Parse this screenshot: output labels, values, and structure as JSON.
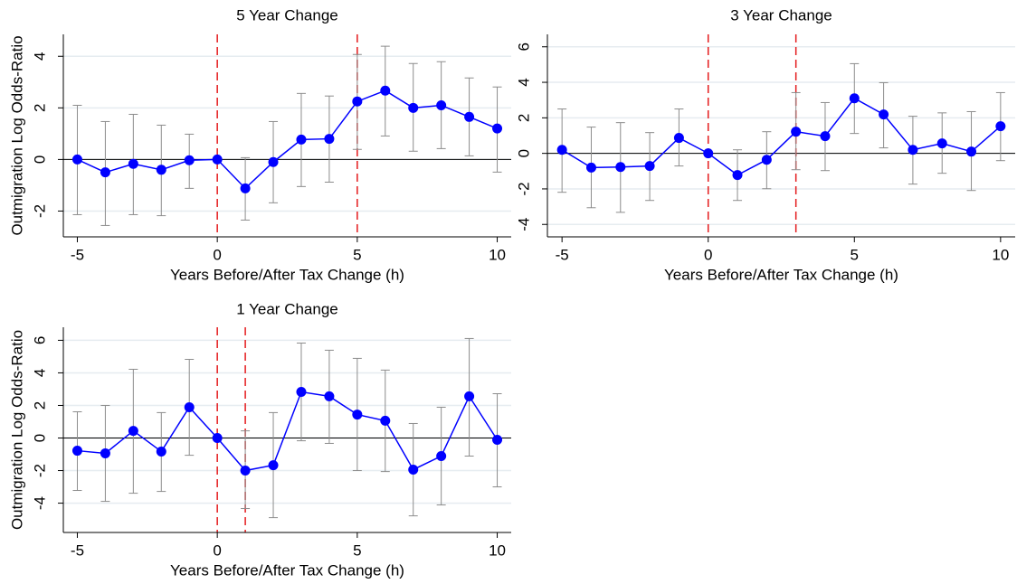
{
  "chart_data": [
    {
      "type": "line",
      "title": "5 Year Change",
      "x_label": "Years Before/After Tax Change (h)",
      "y_label": "Outmigration Log Odds-Ratio",
      "x": [
        -5,
        -4,
        -3,
        -2,
        -1,
        0,
        1,
        2,
        3,
        4,
        5,
        6,
        7,
        8,
        9,
        10
      ],
      "series": [
        {
          "color": "#0000ff",
          "error_color": "#8c8c8c",
          "values": [
            0.0,
            -0.5,
            -0.17,
            -0.4,
            -0.03,
            0,
            -1.12,
            -0.1,
            0.77,
            0.8,
            2.25,
            2.67,
            2.0,
            2.1,
            1.65,
            1.2
          ],
          "ci_lower": [
            -2.14,
            -2.56,
            -2.14,
            -2.18,
            -1.12,
            null,
            -2.35,
            -1.68,
            -1.05,
            -0.88,
            0.39,
            0.91,
            0.32,
            0.42,
            0.14,
            -0.49
          ],
          "ci_upper": [
            2.1,
            1.47,
            1.75,
            1.33,
            0.98,
            null,
            0.07,
            1.47,
            2.56,
            2.46,
            4.07,
            4.39,
            3.72,
            3.79,
            3.16,
            2.81
          ]
        }
      ],
      "xlim": [
        -5.5,
        10.5
      ],
      "xticks": [
        -5,
        0,
        5,
        10
      ],
      "ylim": [
        -3,
        4.85
      ],
      "yticks": [
        -2,
        0,
        2,
        4
      ],
      "vlines": [
        0,
        5
      ],
      "vline_color": "#e41a1c",
      "hline": 0,
      "grid": true
    },
    {
      "type": "line",
      "title": "3 Year Change",
      "x_label": "Years Before/After Tax Change (h)",
      "x": [
        -5,
        -4,
        -3,
        -2,
        -1,
        0,
        1,
        2,
        3,
        4,
        5,
        6,
        7,
        8,
        9,
        10
      ],
      "series": [
        {
          "color": "#0000ff",
          "error_color": "#8c8c8c",
          "values": [
            0.2,
            -0.8,
            -0.77,
            -0.71,
            0.87,
            0,
            -1.22,
            -0.36,
            1.22,
            0.97,
            3.1,
            2.19,
            0.2,
            0.56,
            0.1,
            1.53
          ],
          "ci_lower": [
            -2.19,
            -3.06,
            -3.32,
            -2.65,
            -0.71,
            null,
            -2.65,
            -1.99,
            -0.92,
            -0.97,
            1.12,
            0.31,
            -1.73,
            -1.12,
            -2.09,
            -0.41
          ],
          "ci_upper": [
            2.5,
            1.48,
            1.73,
            1.17,
            2.5,
            null,
            0.2,
            1.22,
            3.42,
            2.86,
            5.05,
            3.98,
            2.09,
            2.28,
            2.35,
            3.42
          ]
        }
      ],
      "xlim": [
        -5.5,
        10.5
      ],
      "xticks": [
        -5,
        0,
        5,
        10
      ],
      "ylim": [
        -4.7,
        6.7
      ],
      "yticks": [
        -4,
        -2,
        0,
        2,
        4,
        6
      ],
      "vlines": [
        0,
        3
      ],
      "vline_color": "#e41a1c",
      "hline": 0,
      "grid": true
    },
    {
      "type": "line",
      "title": "1 Year Change",
      "x_label": "Years Before/After Tax Change (h)",
      "y_label": "Outmigration Log Odds-Ratio",
      "x": [
        -5,
        -4,
        -3,
        -2,
        -1,
        0,
        1,
        2,
        3,
        4,
        5,
        6,
        7,
        8,
        9,
        10
      ],
      "series": [
        {
          "color": "#0000ff",
          "error_color": "#8c8c8c",
          "values": [
            -0.78,
            -0.94,
            0.44,
            -0.83,
            1.89,
            0,
            -2.0,
            -1.67,
            2.83,
            2.56,
            1.44,
            1.06,
            -1.94,
            -1.11,
            2.56,
            -0.11
          ],
          "ci_lower": [
            -3.22,
            -3.89,
            -3.39,
            -3.28,
            -1.06,
            null,
            -4.33,
            -4.89,
            -0.17,
            -0.33,
            -2.0,
            -2.06,
            -4.78,
            -4.11,
            -1.11,
            -3.0
          ],
          "ci_upper": [
            1.61,
            2.0,
            4.22,
            1.56,
            4.83,
            null,
            0.44,
            1.56,
            5.83,
            5.39,
            4.89,
            4.17,
            0.89,
            1.89,
            6.11,
            2.72
          ]
        }
      ],
      "xlim": [
        -5.5,
        10.5
      ],
      "xticks": [
        -5,
        0,
        5,
        10
      ],
      "ylim": [
        -5.8,
        6.8
      ],
      "yticks": [
        -4,
        -2,
        0,
        2,
        4,
        6
      ],
      "vlines": [
        0,
        1
      ],
      "vline_color": "#e41a1c",
      "hline": 0,
      "grid": true
    }
  ]
}
